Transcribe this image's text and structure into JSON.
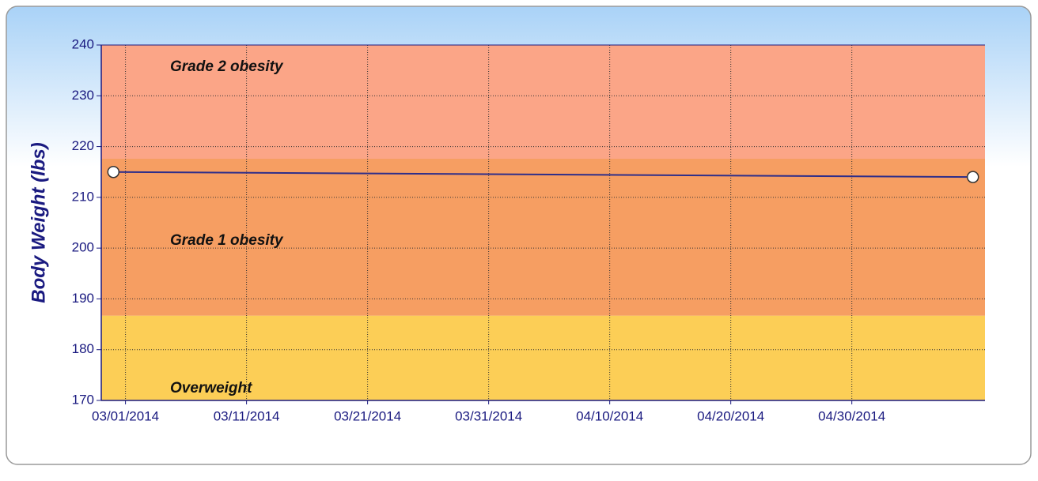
{
  "chart_data": {
    "type": "line",
    "ylabel": "Body Weight (lbs)",
    "x": [
      "2014-02-28",
      "2014-05-10"
    ],
    "series": [
      {
        "color": "#2e2e8a",
        "values": [
          215,
          214
        ]
      }
    ],
    "xlim": [
      "2014-02-27",
      "2014-05-11"
    ],
    "xticks": [
      {
        "value": "2014-03-01",
        "label": "03/01/2014"
      },
      {
        "value": "2014-03-11",
        "label": "03/11/2014"
      },
      {
        "value": "2014-03-21",
        "label": "03/21/2014"
      },
      {
        "value": "2014-03-31",
        "label": "03/31/2014"
      },
      {
        "value": "2014-04-10",
        "label": "04/10/2014"
      },
      {
        "value": "2014-04-20",
        "label": "04/20/2014"
      },
      {
        "value": "2014-04-30",
        "label": "04/30/2014"
      }
    ],
    "ylim": [
      170,
      240
    ],
    "yticks": [
      170,
      180,
      190,
      200,
      210,
      220,
      230,
      240
    ],
    "grid": true,
    "bands": [
      {
        "name": "Overweight",
        "from": 170,
        "to": 186.7,
        "color": "#fcce56"
      },
      {
        "name": "Grade 1 obesity",
        "from": 186.7,
        "to": 217.6,
        "color": "#f69e62"
      },
      {
        "name": "Grade 2 obesity",
        "from": 217.6,
        "to": 240,
        "color": "#fba587"
      }
    ]
  }
}
